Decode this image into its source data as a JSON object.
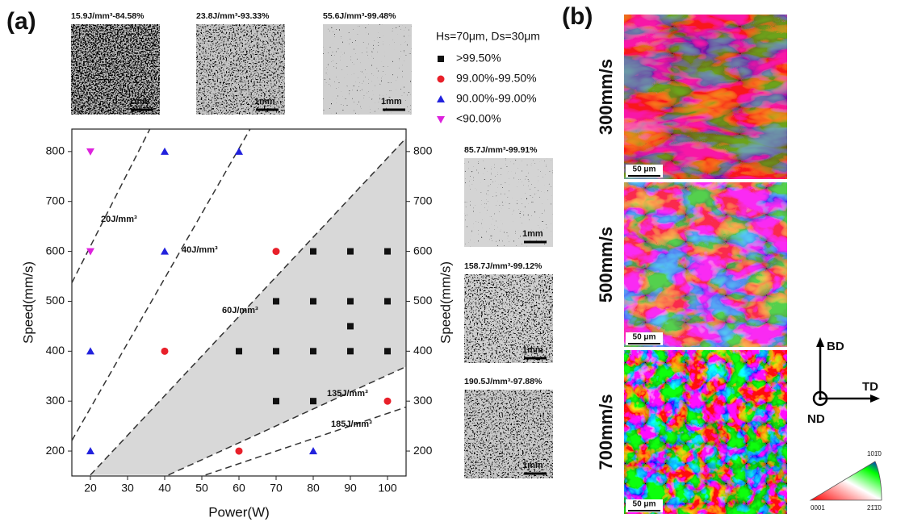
{
  "panel_labels": [
    "(a)",
    "(b)"
  ],
  "chart_data": {
    "type": "scatter",
    "xlabel": "Power(W)",
    "ylabel": "Speed(mm/s)",
    "xlim": [
      15,
      105
    ],
    "ylim": [
      150,
      845
    ],
    "xticks": [
      20,
      30,
      40,
      50,
      60,
      70,
      80,
      90,
      100
    ],
    "yticks": [
      200,
      300,
      400,
      500,
      600,
      700,
      800
    ],
    "legend_title": "Hs=70μm, Ds=30μm",
    "series": [
      {
        "name": ">99.50%",
        "color": "#111111",
        "marker": "square",
        "x": [
          80,
          90,
          100,
          70,
          80,
          90,
          100,
          90,
          60,
          70,
          80,
          90,
          100,
          70,
          80
        ],
        "values": [
          600,
          600,
          600,
          500,
          500,
          500,
          500,
          450,
          400,
          400,
          400,
          400,
          400,
          300,
          300
        ]
      },
      {
        "name": "99.00%-99.50%",
        "color": "#e8202a",
        "marker": "circle",
        "x": [
          70,
          40,
          100,
          60
        ],
        "values": [
          600,
          400,
          300,
          200
        ]
      },
      {
        "name": "90.00%-99.00%",
        "color": "#2222dd",
        "marker": "triangle",
        "x": [
          40,
          60,
          40,
          20,
          20,
          80
        ],
        "values": [
          800,
          800,
          600,
          400,
          200,
          200
        ]
      },
      {
        "name": "<90.00%",
        "color": "#dd22dd",
        "marker": "triangle-down",
        "x": [
          20,
          20
        ],
        "values": [
          800,
          600
        ]
      }
    ],
    "energy_lines": [
      {
        "label": "20J/mm³",
        "x": [
          15,
          36
        ],
        "y": [
          537,
          845
        ]
      },
      {
        "label": "40J/mm³",
        "x": [
          15,
          63
        ],
        "y": [
          221,
          845
        ]
      },
      {
        "label": "60J/mm³",
        "x": [
          20,
          105
        ],
        "y": [
          152,
          827
        ]
      },
      {
        "label": "135J/mm³",
        "x": [
          41,
          105
        ],
        "y": [
          152,
          369
        ]
      },
      {
        "label": "185J/mm³",
        "x": [
          51,
          105
        ],
        "y": [
          152,
          288
        ]
      }
    ]
  },
  "micrographs": [
    {
      "label": "15.9J/mm³-84.58%",
      "scale": "1mm"
    },
    {
      "label": "23.8J/mm³-93.33%",
      "scale": "1mm"
    },
    {
      "label": "55.6J/mm³-99.48%",
      "scale": "1mm"
    },
    {
      "label": "85.7J/mm³-99.91%",
      "scale": "1mm"
    },
    {
      "label": "158.7J/mm³-99.12%",
      "scale": "1mm"
    },
    {
      "label": "190.5J/mm³-97.88%",
      "scale": "1mm"
    }
  ],
  "ebsd": {
    "maps": [
      {
        "speed": "300mm/s",
        "scale": "50 μm"
      },
      {
        "speed": "500mm/s",
        "scale": "50 μm"
      },
      {
        "speed": "700mm/s",
        "scale": "50 μm"
      }
    ],
    "axes": [
      "BD",
      "TD",
      "ND"
    ],
    "ipf": [
      "0001",
      "21̄1̄0",
      "101̄0"
    ]
  }
}
